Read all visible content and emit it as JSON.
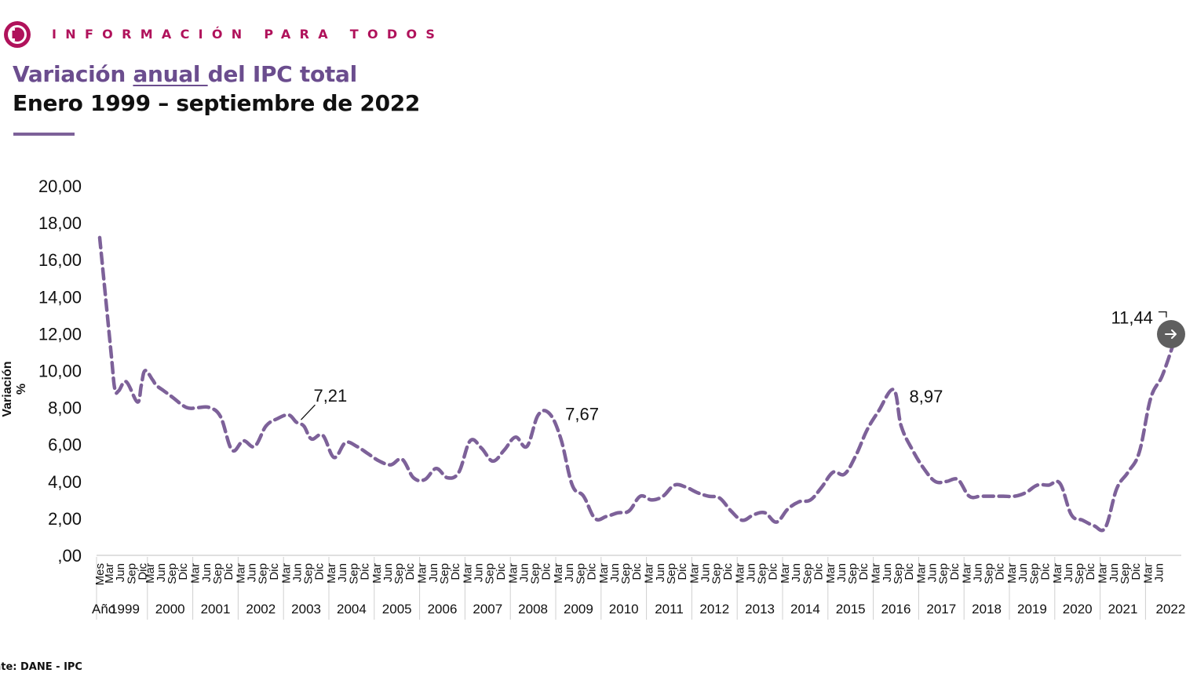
{
  "header": {
    "brand_text": "INFORMACIÓN PARA TODOS",
    "title_part1": "Variación ",
    "title_part2": "anual ",
    "title_part3": "del IPC total",
    "subtitle": "Enero 1999 – septiembre de 2022"
  },
  "source": "nte: DANE - IPC",
  "colors": {
    "brand": "#b0125b",
    "title": "#6b4d8e",
    "series": "#7d6199",
    "rule": "#7d6199"
  },
  "nav_button": {
    "icon": "arrow-right-icon"
  },
  "chart_data": {
    "type": "line",
    "title": "Variación anual del IPC total",
    "subtitle": "Enero 1999 – septiembre de 2022",
    "ylabel": "Variación %",
    "xlabel": "",
    "ylim": [
      0,
      20
    ],
    "yticks": [
      "20,00",
      "18,00",
      "16,00",
      "14,00",
      "12,00",
      "10,00",
      "8,00",
      "6,00",
      "4,00",
      "2,00",
      ",00"
    ],
    "x_header_month": "Mes",
    "x_header_year": "Año",
    "month_ticks": [
      "Mar",
      "Jun",
      "Sep",
      "Dic"
    ],
    "months_2022": [
      "Mar",
      "Jun"
    ],
    "years": [
      "1999",
      "2000",
      "2001",
      "2002",
      "2003",
      "2004",
      "2005",
      "2006",
      "2007",
      "2008",
      "2009",
      "2010",
      "2011",
      "2012",
      "2013",
      "2014",
      "2015",
      "2016",
      "2017",
      "2018",
      "2019",
      "2020",
      "2021",
      "2022"
    ],
    "grid": false,
    "legend": "none",
    "series": [
      {
        "style": "dashed",
        "x": [
          "1999-01",
          "1999-04",
          "1999-05",
          "1999-06",
          "1999-08",
          "1999-11",
          "1999-12",
          "2000-01",
          "2000-03",
          "2000-04",
          "2000-06",
          "2000-08",
          "2000-12",
          "2001-03",
          "2001-06",
          "2001-09",
          "2001-12",
          "2002-03",
          "2002-06",
          "2002-09",
          "2002-12",
          "2003-03",
          "2003-05",
          "2003-07",
          "2003-09",
          "2003-12",
          "2004-03",
          "2004-06",
          "2004-09",
          "2004-12",
          "2005-03",
          "2005-06",
          "2005-09",
          "2005-12",
          "2006-03",
          "2006-06",
          "2006-09",
          "2006-12",
          "2007-03",
          "2007-06",
          "2007-09",
          "2007-12",
          "2008-03",
          "2008-06",
          "2008-09",
          "2008-12",
          "2009-03",
          "2009-06",
          "2009-09",
          "2009-12",
          "2010-03",
          "2010-06",
          "2010-09",
          "2010-12",
          "2011-03",
          "2011-06",
          "2011-09",
          "2011-12",
          "2012-03",
          "2012-06",
          "2012-09",
          "2012-12",
          "2013-03",
          "2013-06",
          "2013-09",
          "2013-12",
          "2014-03",
          "2014-06",
          "2014-09",
          "2014-12",
          "2015-03",
          "2015-06",
          "2015-09",
          "2015-12",
          "2016-03",
          "2016-07",
          "2016-09",
          "2016-12",
          "2017-03",
          "2017-06",
          "2017-09",
          "2017-12",
          "2018-03",
          "2018-06",
          "2018-09",
          "2018-12",
          "2019-03",
          "2019-06",
          "2019-09",
          "2019-12",
          "2020-03",
          "2020-06",
          "2020-09",
          "2020-12",
          "2021-03",
          "2021-06",
          "2021-09",
          "2021-12",
          "2022-03",
          "2022-06",
          "2022-09"
        ],
        "y": [
          17.2,
          11.0,
          9.0,
          8.9,
          9.4,
          8.3,
          9.2,
          10.0,
          9.5,
          9.2,
          8.9,
          8.6,
          8.0,
          8.0,
          8.0,
          7.5,
          5.7,
          6.2,
          5.9,
          7.0,
          7.4,
          7.6,
          7.21,
          7.0,
          6.3,
          6.5,
          5.3,
          6.1,
          5.9,
          5.5,
          5.1,
          4.9,
          5.2,
          4.2,
          4.1,
          4.7,
          4.2,
          4.5,
          6.2,
          5.8,
          5.1,
          5.7,
          6.4,
          5.9,
          7.6,
          7.67,
          6.3,
          3.8,
          3.2,
          2.0,
          2.1,
          2.3,
          2.4,
          3.2,
          3.0,
          3.2,
          3.8,
          3.7,
          3.4,
          3.2,
          3.1,
          2.4,
          1.9,
          2.2,
          2.3,
          1.8,
          2.5,
          2.9,
          3.0,
          3.7,
          4.5,
          4.4,
          5.4,
          6.8,
          7.8,
          8.97,
          7.0,
          5.7,
          4.7,
          4.0,
          4.0,
          4.1,
          3.2,
          3.2,
          3.2,
          3.2,
          3.2,
          3.4,
          3.8,
          3.8,
          3.9,
          2.2,
          1.9,
          1.6,
          1.5,
          3.6,
          4.5,
          5.6,
          8.5,
          9.7,
          11.44
        ]
      }
    ],
    "annotations": [
      {
        "label": "7,21",
        "x": "2003-05",
        "y": 7.21
      },
      {
        "label": "7,67",
        "x": "2008-12",
        "y": 7.67
      },
      {
        "label": "8,97",
        "x": "2016-07",
        "y": 8.97
      },
      {
        "label": "11,44",
        "x": "2022-09",
        "y": 11.44
      }
    ]
  }
}
